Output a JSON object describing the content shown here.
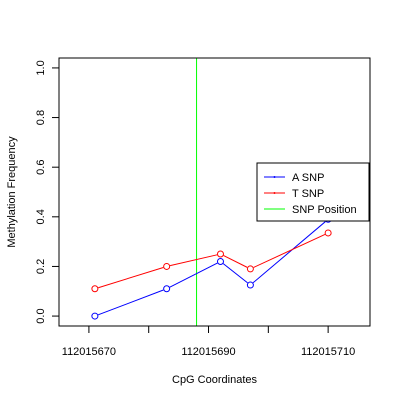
{
  "chart_data": {
    "type": "line",
    "title": "",
    "xlabel": "CpG Coordinates",
    "ylabel": "Methylation Frequency",
    "xlim": [
      112015665,
      112015717
    ],
    "ylim": [
      -0.04,
      1.04
    ],
    "x_ticks": [
      112015670,
      112015690,
      112015710
    ],
    "x_minor_ticks": [
      112015680,
      112015700
    ],
    "y_ticks": [
      0.0,
      0.2,
      0.4,
      0.6,
      0.8,
      1.0
    ],
    "y_tick_labels": [
      "0.0",
      "0.2",
      "0.4",
      "0.6",
      "0.8",
      "1.0"
    ],
    "x_tick_labels": [
      "112015670",
      "112015690",
      "112015710"
    ],
    "grid": false,
    "legend_position": "right",
    "snp_position": 112015688,
    "series": [
      {
        "name": "A SNP",
        "color": "#0000ff",
        "x": [
          112015671,
          112015683,
          112015692,
          112015697,
          112015710
        ],
        "y": [
          0.0,
          0.11,
          0.22,
          0.125,
          0.39
        ]
      },
      {
        "name": "T SNP",
        "color": "#ff0000",
        "x": [
          112015671,
          112015683,
          112015692,
          112015697,
          112015710
        ],
        "y": [
          0.11,
          0.2,
          0.25,
          0.19,
          0.335
        ]
      },
      {
        "name": "SNP Position",
        "color": "#00ff00"
      }
    ]
  }
}
